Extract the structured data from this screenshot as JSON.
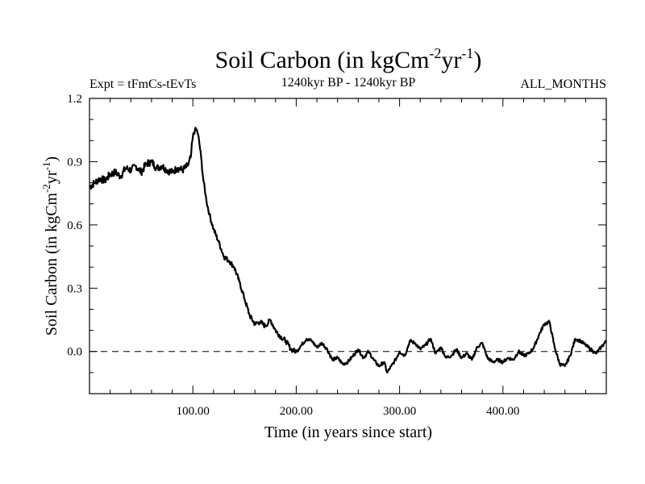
{
  "chart_data": {
    "type": "line",
    "title_main": "Soil Carbon (in kgCm",
    "title_sup1": "-2",
    "title_mid": "yr",
    "title_sup2": "-1",
    "title_end": ")",
    "subtitle_left": "Expt = tFmCs-tEvTs",
    "subtitle_center": "1240kyr BP - 1240kyr BP",
    "subtitle_right": "ALL_MONTHS",
    "xlabel": "Time (in years since start)",
    "ylabel_main": "Soil Carbon (in kgCm",
    "ylabel_sup1": "-2",
    "ylabel_mid": "yr",
    "ylabel_sup2": "-1",
    "ylabel_end": ")",
    "xlim": [
      0,
      500
    ],
    "ylim": [
      -0.2,
      1.2
    ],
    "x_ticks": [
      {
        "value": 100,
        "label": "100.00"
      },
      {
        "value": 200,
        "label": "200.00"
      },
      {
        "value": 300,
        "label": "300.00"
      },
      {
        "value": 400,
        "label": "400.00"
      }
    ],
    "y_ticks": [
      {
        "value": 0.0,
        "label": "0.0"
      },
      {
        "value": 0.3,
        "label": "0.3"
      },
      {
        "value": 0.6,
        "label": "0.6"
      },
      {
        "value": 0.9,
        "label": "0.9"
      },
      {
        "value": 1.2,
        "label": "1.2"
      }
    ],
    "reference_line": 0.0,
    "series": [
      {
        "name": "Soil Carbon",
        "x": [
          0,
          5,
          10,
          15,
          20,
          25,
          30,
          35,
          40,
          45,
          50,
          55,
          60,
          65,
          70,
          75,
          80,
          85,
          90,
          95,
          98,
          100,
          102,
          104,
          106,
          108,
          110,
          113,
          116,
          120,
          125,
          130,
          135,
          140,
          145,
          150,
          155,
          160,
          165,
          170,
          175,
          180,
          185,
          190,
          195,
          200,
          205,
          210,
          215,
          220,
          225,
          230,
          235,
          240,
          245,
          250,
          255,
          260,
          265,
          270,
          275,
          280,
          285,
          288,
          292,
          296,
          300,
          305,
          310,
          315,
          320,
          325,
          330,
          335,
          340,
          345,
          350,
          355,
          360,
          365,
          370,
          375,
          380,
          385,
          390,
          395,
          400,
          405,
          410,
          415,
          420,
          425,
          430,
          435,
          440,
          445,
          450,
          455,
          460,
          465,
          470,
          475,
          480,
          485,
          490,
          495,
          500
        ],
        "y": [
          0.78,
          0.8,
          0.82,
          0.81,
          0.84,
          0.85,
          0.83,
          0.87,
          0.86,
          0.88,
          0.85,
          0.89,
          0.9,
          0.87,
          0.88,
          0.86,
          0.85,
          0.87,
          0.86,
          0.88,
          0.92,
          1.02,
          1.05,
          1.05,
          1.0,
          0.92,
          0.82,
          0.72,
          0.65,
          0.58,
          0.52,
          0.45,
          0.43,
          0.4,
          0.33,
          0.25,
          0.17,
          0.13,
          0.14,
          0.12,
          0.15,
          0.1,
          0.07,
          0.05,
          0.01,
          0.0,
          0.03,
          0.06,
          0.05,
          0.02,
          0.04,
          0.01,
          -0.04,
          -0.03,
          -0.06,
          -0.05,
          -0.02,
          0.01,
          -0.03,
          0.0,
          -0.04,
          -0.07,
          -0.05,
          -0.1,
          -0.07,
          -0.04,
          0.0,
          -0.02,
          0.05,
          0.04,
          0.01,
          0.03,
          0.06,
          -0.01,
          0.02,
          -0.03,
          -0.02,
          0.01,
          -0.03,
          -0.01,
          -0.04,
          0.02,
          0.04,
          -0.03,
          -0.05,
          -0.04,
          -0.05,
          -0.03,
          -0.04,
          0.0,
          -0.02,
          -0.01,
          0.02,
          0.08,
          0.13,
          0.14,
          0.02,
          -0.06,
          -0.07,
          -0.02,
          0.06,
          0.05,
          0.03,
          0.01,
          -0.01,
          0.02,
          0.05
        ]
      }
    ]
  }
}
